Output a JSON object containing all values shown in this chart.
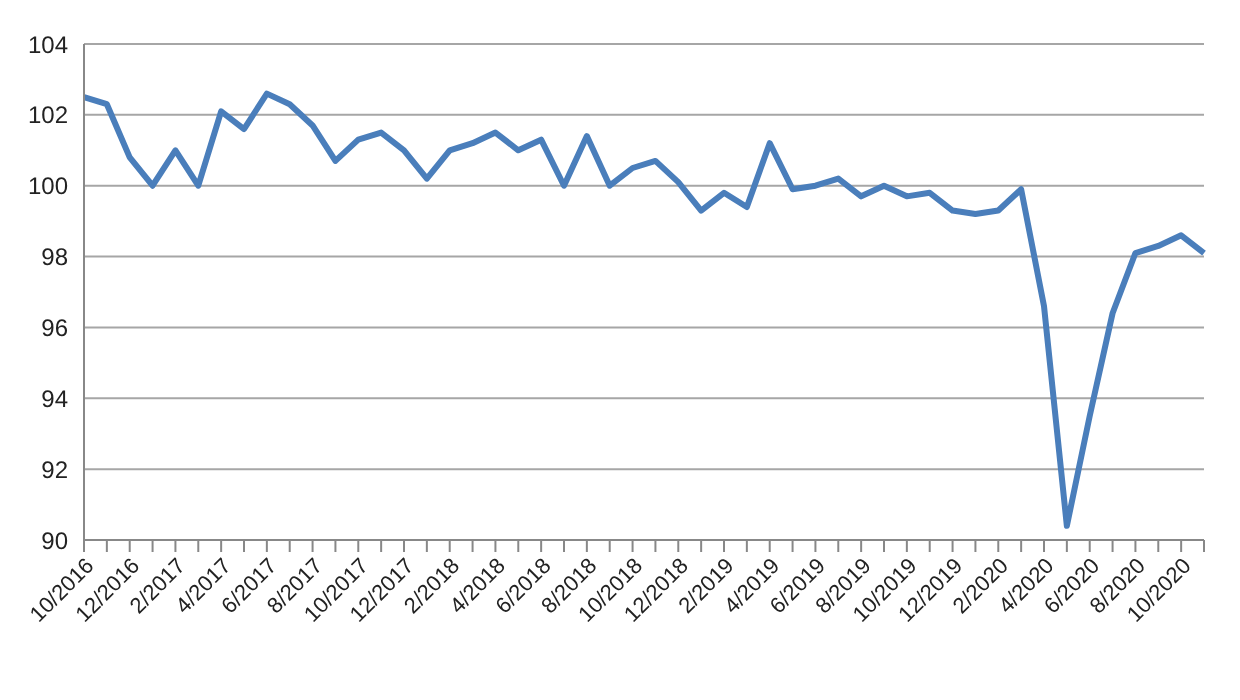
{
  "chart_data": {
    "type": "line",
    "categories": [
      "10/2016",
      null,
      "12/2016",
      null,
      "2/2017",
      null,
      "4/2017",
      null,
      "6/2017",
      null,
      "8/2017",
      null,
      "10/2017",
      null,
      "12/2017",
      null,
      "2/2018",
      null,
      "4/2018",
      null,
      "6/2018",
      null,
      "8/2018",
      null,
      "10/2018",
      null,
      "12/2018",
      null,
      "2/2019",
      null,
      "4/2019",
      null,
      "6/2019",
      null,
      "8/2019",
      null,
      "10/2019",
      null,
      "12/2019",
      null,
      "2/2020",
      null,
      "4/2020",
      null,
      "6/2020",
      null,
      "8/2020",
      null,
      "10/2020",
      null
    ],
    "series": [
      {
        "color": "#4a7ebb",
        "values": [
          102.5,
          102.3,
          100.8,
          100.0,
          101.0,
          100.0,
          102.1,
          101.6,
          102.6,
          102.3,
          101.7,
          100.7,
          101.3,
          101.5,
          101.0,
          100.2,
          101.0,
          101.2,
          101.5,
          101.0,
          101.3,
          100.0,
          101.4,
          100.0,
          100.5,
          100.7,
          100.1,
          99.3,
          99.8,
          99.4,
          101.2,
          99.9,
          100.0,
          100.2,
          99.7,
          100.0,
          99.7,
          99.8,
          99.3,
          99.2,
          99.3,
          99.9,
          96.6,
          90.4,
          93.5,
          96.4,
          98.1,
          98.3,
          98.6,
          98.1
        ]
      }
    ],
    "ylim": [
      90,
      104
    ],
    "yticks": [
      90,
      92,
      94,
      96,
      98,
      100,
      102,
      104
    ],
    "grid": "y",
    "legend": false,
    "marker": "none",
    "line_style": "solid"
  }
}
